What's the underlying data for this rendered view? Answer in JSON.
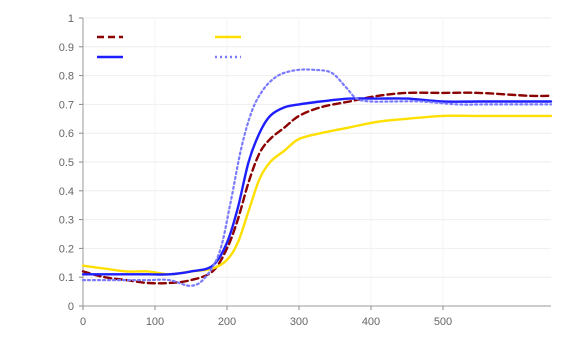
{
  "chart_data": {
    "type": "line",
    "title": "",
    "xlabel": "",
    "ylabel": "",
    "xlim": [
      0,
      650
    ],
    "ylim": [
      0,
      1
    ],
    "xticks": [
      0,
      100,
      200,
      300,
      400,
      500
    ],
    "yticks": [
      0,
      0.1,
      0.2,
      0.3,
      0.4,
      0.5,
      0.6,
      0.7,
      0.8,
      0.9,
      1.0
    ],
    "grid": true,
    "legend": "top-left",
    "series": [
      {
        "name": "",
        "color": "#8b0000",
        "style": "dash",
        "x": [
          0,
          30,
          60,
          90,
          120,
          150,
          180,
          200,
          215,
          230,
          245,
          260,
          280,
          300,
          330,
          370,
          410,
          450,
          500,
          550,
          620,
          650
        ],
        "y": [
          0.12,
          0.1,
          0.09,
          0.08,
          0.08,
          0.09,
          0.12,
          0.2,
          0.3,
          0.43,
          0.53,
          0.58,
          0.62,
          0.66,
          0.69,
          0.71,
          0.73,
          0.74,
          0.74,
          0.74,
          0.73,
          0.73
        ]
      },
      {
        "name": "",
        "color": "#ffdf00",
        "style": "solid",
        "x": [
          0,
          30,
          60,
          90,
          120,
          150,
          180,
          200,
          215,
          230,
          245,
          260,
          280,
          300,
          330,
          370,
          410,
          450,
          500,
          550,
          620,
          650
        ],
        "y": [
          0.14,
          0.13,
          0.12,
          0.12,
          0.11,
          0.12,
          0.13,
          0.16,
          0.22,
          0.33,
          0.44,
          0.5,
          0.54,
          0.58,
          0.6,
          0.62,
          0.64,
          0.65,
          0.66,
          0.66,
          0.66,
          0.66
        ]
      },
      {
        "name": "",
        "color": "#1e1eff",
        "style": "solid",
        "x": [
          0,
          30,
          60,
          90,
          120,
          150,
          180,
          200,
          215,
          230,
          245,
          260,
          280,
          300,
          330,
          370,
          410,
          450,
          500,
          550,
          620,
          650
        ],
        "y": [
          0.11,
          0.11,
          0.11,
          0.11,
          0.11,
          0.12,
          0.14,
          0.22,
          0.34,
          0.5,
          0.6,
          0.66,
          0.69,
          0.7,
          0.71,
          0.72,
          0.72,
          0.72,
          0.71,
          0.71,
          0.71,
          0.71
        ]
      },
      {
        "name": "",
        "color": "#7a7aff",
        "style": "dot",
        "x": [
          0,
          30,
          60,
          90,
          120,
          150,
          170,
          190,
          205,
          220,
          235,
          250,
          265,
          280,
          300,
          320,
          345,
          365,
          380,
          400,
          430,
          470,
          520,
          560,
          620,
          650
        ],
        "y": [
          0.09,
          0.09,
          0.09,
          0.09,
          0.09,
          0.07,
          0.1,
          0.19,
          0.36,
          0.55,
          0.68,
          0.75,
          0.79,
          0.81,
          0.82,
          0.82,
          0.81,
          0.76,
          0.72,
          0.71,
          0.71,
          0.71,
          0.7,
          0.7,
          0.7,
          0.7
        ]
      },
      {
        "name": "",
        "color": "#ffffff",
        "style": "hidden",
        "x": [],
        "y": []
      }
    ],
    "legend_labels": [
      "",
      "",
      "",
      "",
      ""
    ]
  }
}
